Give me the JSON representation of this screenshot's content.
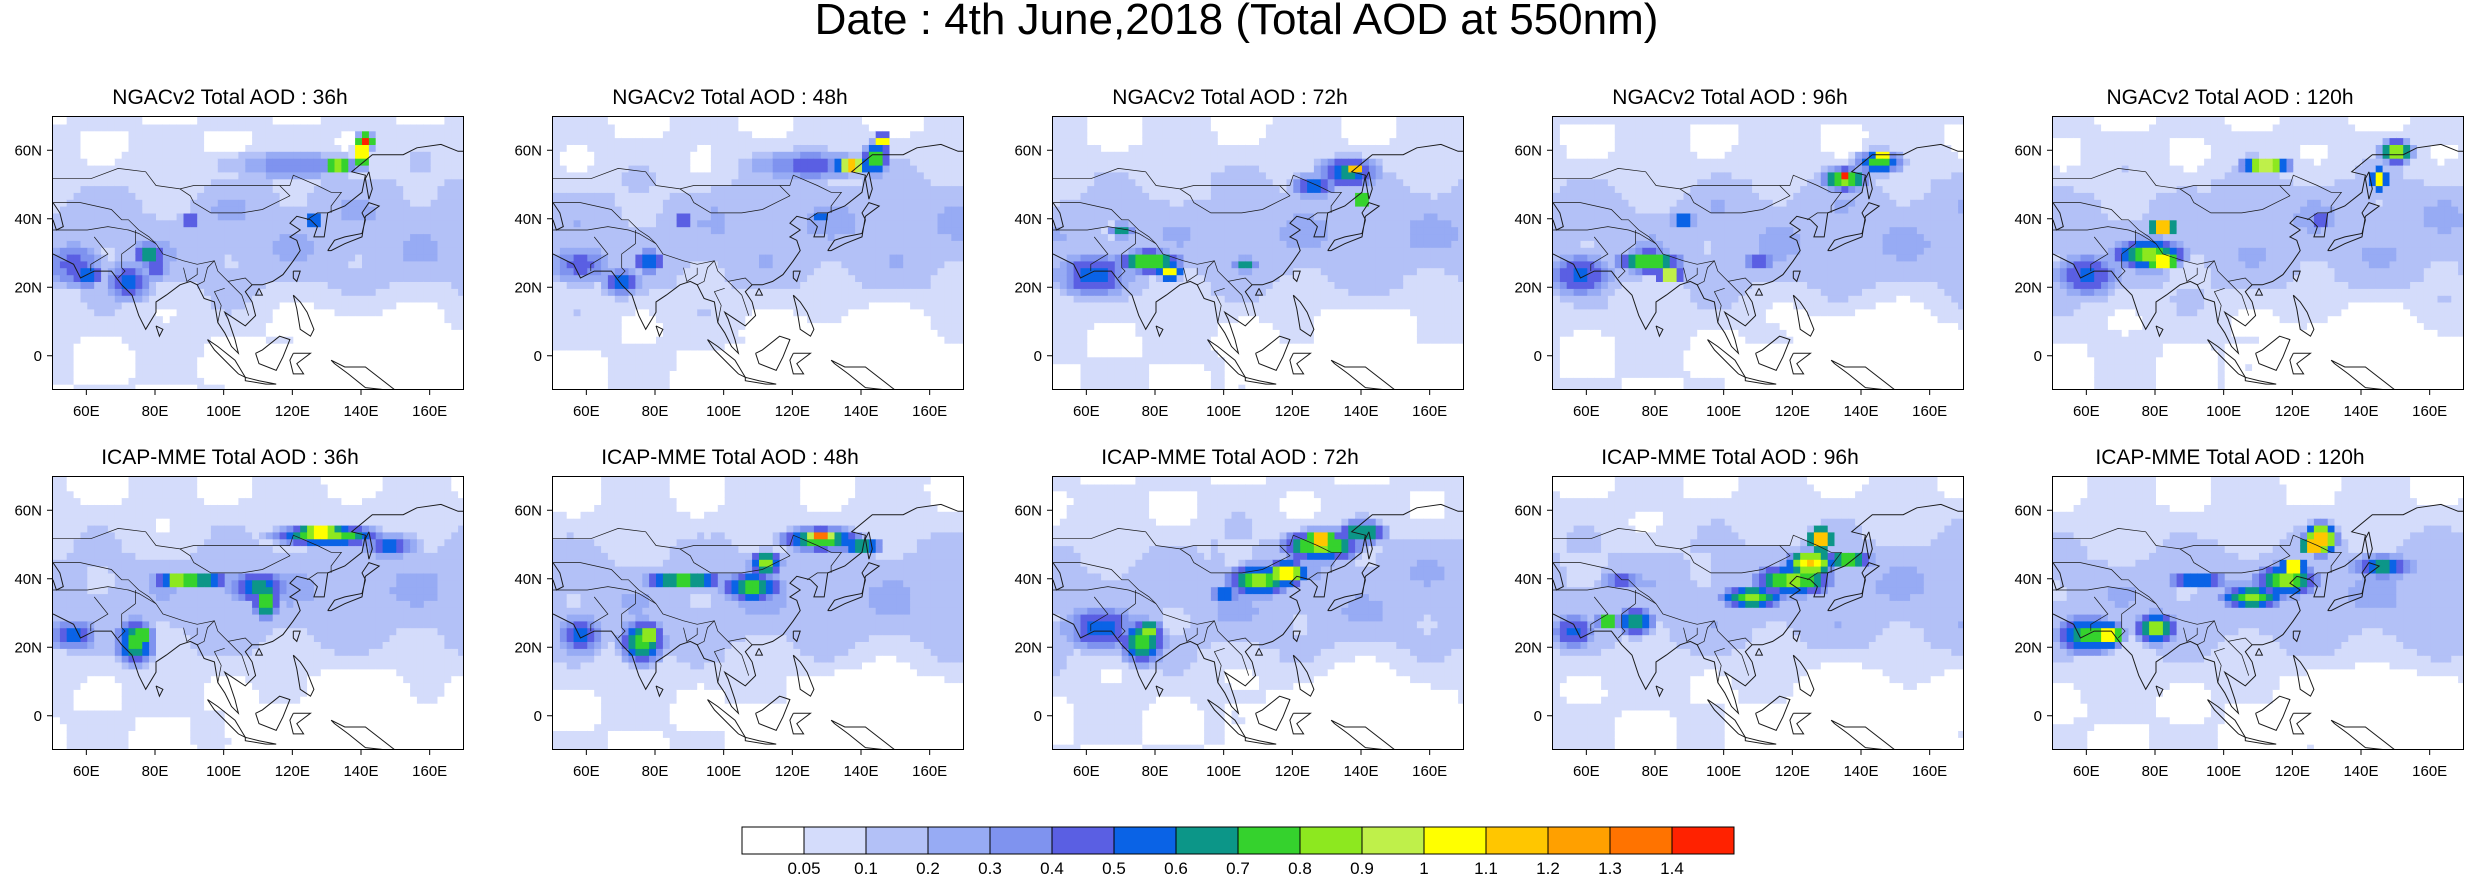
{
  "title": "Date : 4th June,2018 (Total AOD at 550nm)",
  "map": {
    "lon_range": [
      50,
      170
    ],
    "lat_range": [
      -10,
      70
    ],
    "x_ticks": [
      "60E",
      "80E",
      "100E",
      "120E",
      "140E",
      "160E"
    ],
    "x_tick_values": [
      60,
      80,
      100,
      120,
      140,
      160
    ],
    "y_ticks": [
      "60N",
      "40N",
      "20N",
      "0"
    ],
    "y_tick_values": [
      60,
      40,
      20,
      0
    ]
  },
  "panels": [
    {
      "title": "NGACv2 Total AOD : 36h",
      "model": "NGACv2",
      "lead_hours": 36
    },
    {
      "title": "NGACv2 Total AOD : 48h",
      "model": "NGACv2",
      "lead_hours": 48
    },
    {
      "title": "NGACv2 Total AOD : 72h",
      "model": "NGACv2",
      "lead_hours": 72
    },
    {
      "title": "NGACv2 Total AOD : 96h",
      "model": "NGACv2",
      "lead_hours": 96
    },
    {
      "title": "NGACv2 Total AOD : 120h",
      "model": "NGACv2",
      "lead_hours": 120
    },
    {
      "title": "ICAP-MME Total AOD : 36h",
      "model": "ICAP-MME",
      "lead_hours": 36
    },
    {
      "title": "ICAP-MME Total AOD : 48h",
      "model": "ICAP-MME",
      "lead_hours": 48
    },
    {
      "title": "ICAP-MME Total AOD : 72h",
      "model": "ICAP-MME",
      "lead_hours": 72
    },
    {
      "title": "ICAP-MME Total AOD : 96h",
      "model": "ICAP-MME",
      "lead_hours": 96
    },
    {
      "title": "ICAP-MME Total AOD : 120h",
      "model": "ICAP-MME",
      "lead_hours": 120
    }
  ],
  "colorbar": {
    "levels": [
      "0.05",
      "0.1",
      "0.2",
      "0.3",
      "0.4",
      "0.5",
      "0.6",
      "0.7",
      "0.8",
      "0.9",
      "1",
      "1.1",
      "1.2",
      "1.3",
      "1.4"
    ],
    "colors": [
      "#ffffff",
      "#d4dcfb",
      "#b3c1f7",
      "#97abf4",
      "#7f93ef",
      "#5a5fe3",
      "#0a63e6",
      "#0c9688",
      "#35d22d",
      "#8de81f",
      "#bff04a",
      "#ffff00",
      "#ffc600",
      "#ffa000",
      "#ff7300",
      "#ff2200"
    ]
  }
}
